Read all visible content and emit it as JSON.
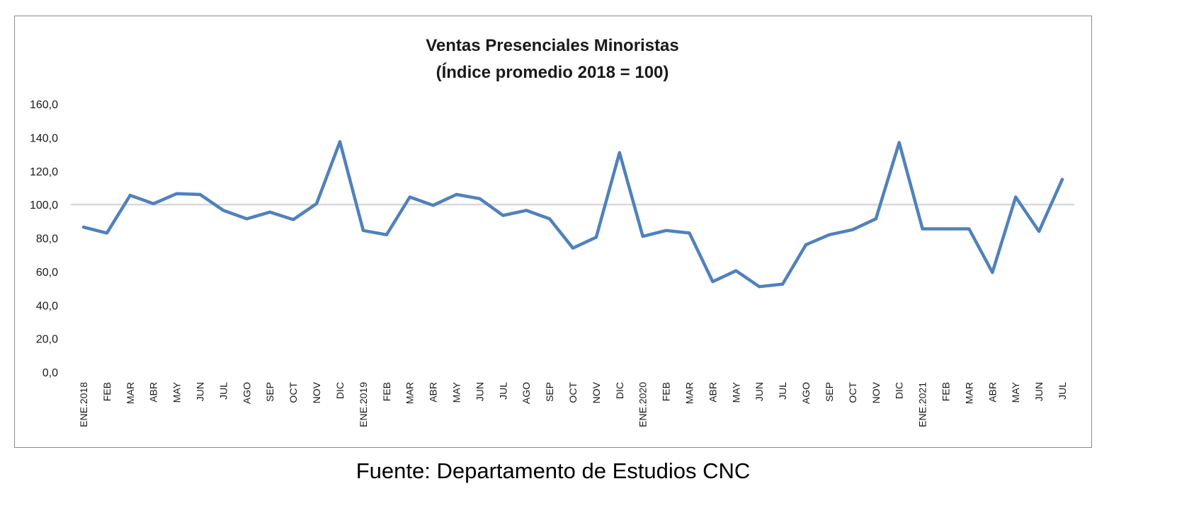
{
  "chart_data": {
    "type": "line",
    "title": "Ventas Presenciales Minoristas",
    "subtitle": "(Índice promedio 2018 = 100)",
    "categories": [
      "ENE.2018",
      "FEB",
      "MAR",
      "ABR",
      "MAY",
      "JUN",
      "JUL",
      "AGO",
      "SEP",
      "OCT",
      "NOV",
      "DIC",
      "ENE.2019",
      "FEB",
      "MAR",
      "ABR",
      "MAY",
      "JUN",
      "JUL",
      "AGO",
      "SEP",
      "OCT",
      "NOV",
      "DIC",
      "ENE.2020",
      "FEB",
      "MAR",
      "ABR",
      "MAY",
      "JUN",
      "JUL",
      "AGO",
      "SEP",
      "OCT",
      "NOV",
      "DIC",
      "ENE.2021",
      "FEB",
      "MAR",
      "ABR",
      "MAY",
      "JUN",
      "JUL"
    ],
    "series": [
      {
        "values": [
          86.5,
          83.0,
          105.5,
          100.5,
          106.5,
          106.0,
          96.5,
          91.5,
          95.5,
          91.0,
          100.5,
          137.5,
          84.5,
          82.0,
          104.5,
          99.5,
          106.0,
          103.5,
          93.5,
          96.5,
          91.5,
          74.0,
          80.5,
          131.0,
          81.0,
          84.5,
          83.0,
          54.0,
          60.5,
          51.0,
          52.5,
          76.0,
          82.0,
          85.0,
          91.5,
          137.0,
          85.5,
          85.5,
          85.5,
          59.5,
          104.5,
          84.0,
          115.0
        ],
        "color": "#4f81bd"
      }
    ],
    "y_ticks": [
      "0,0",
      "20,0",
      "40,0",
      "60,0",
      "80,0",
      "100,0",
      "120,0",
      "140,0",
      "160,0"
    ],
    "ylim": [
      0,
      160
    ],
    "reference_line": {
      "value": 100,
      "color": "#d9d9d9"
    },
    "grid": false,
    "legend": "none"
  },
  "source_note": "Fuente: Departamento de Estudios CNC"
}
